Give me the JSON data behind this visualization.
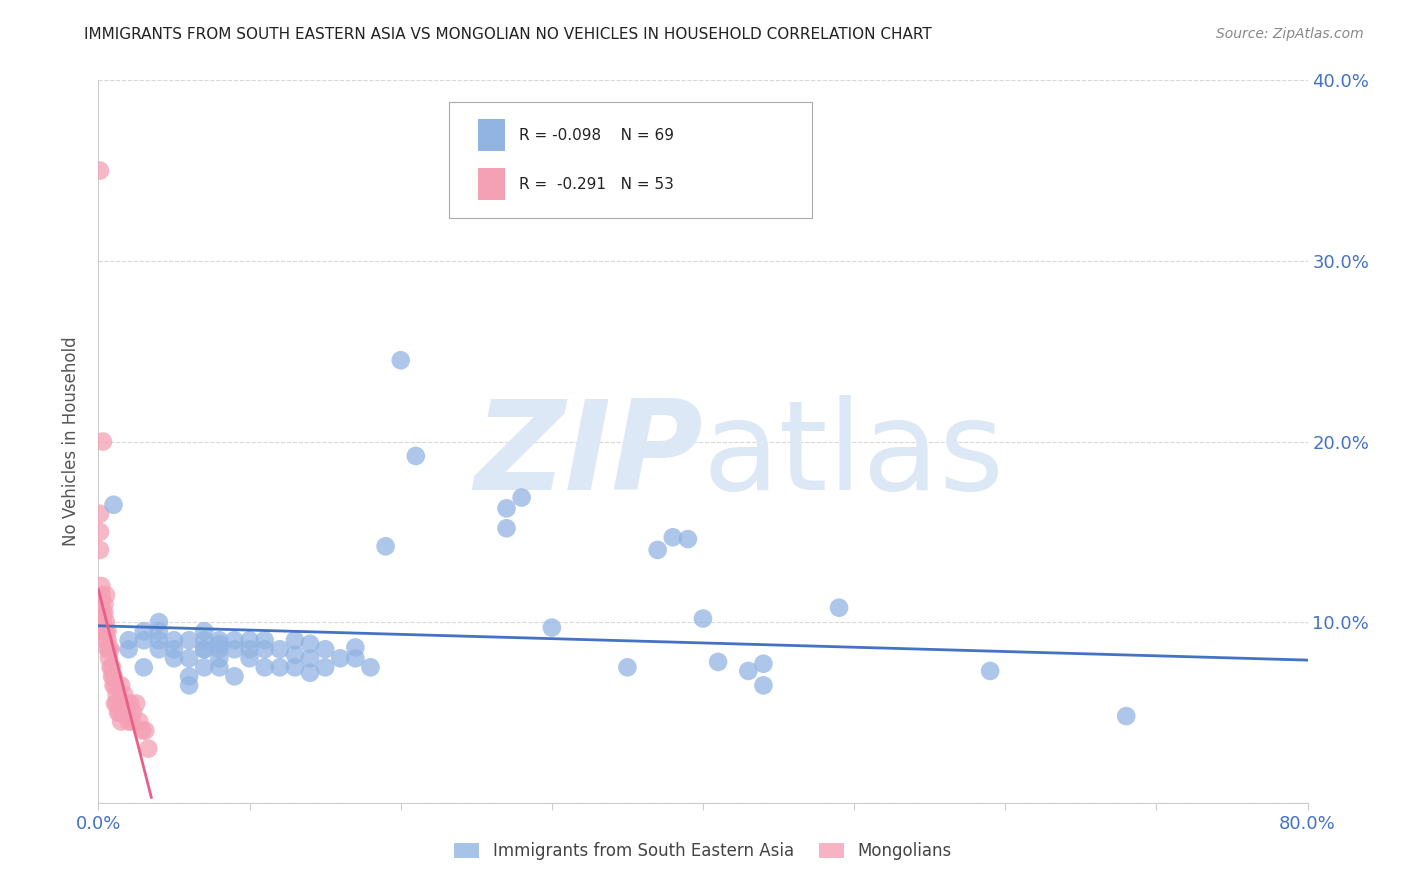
{
  "title": "IMMIGRANTS FROM SOUTH EASTERN ASIA VS MONGOLIAN NO VEHICLES IN HOUSEHOLD CORRELATION CHART",
  "source": "Source: ZipAtlas.com",
  "ylabel": "No Vehicles in Household",
  "xlim": [
    0.0,
    0.8
  ],
  "ylim": [
    0.0,
    0.4
  ],
  "blue_color": "#92b4e3",
  "pink_color": "#f4a0b5",
  "blue_line_color": "#4472c4",
  "pink_line_color": "#e8608a",
  "legend_R1": "R = -0.098",
  "legend_N1": "N = 69",
  "legend_R2": "R =  -0.291",
  "legend_N2": "N = 53",
  "legend_label1": "Immigrants from South Eastern Asia",
  "legend_label2": "Mongolians",
  "watermark": "ZIPatlas",
  "blue_scatter_x": [
    0.01,
    0.02,
    0.02,
    0.03,
    0.03,
    0.03,
    0.04,
    0.04,
    0.04,
    0.04,
    0.05,
    0.05,
    0.05,
    0.06,
    0.06,
    0.06,
    0.06,
    0.07,
    0.07,
    0.07,
    0.07,
    0.07,
    0.08,
    0.08,
    0.08,
    0.08,
    0.08,
    0.09,
    0.09,
    0.09,
    0.1,
    0.1,
    0.1,
    0.11,
    0.11,
    0.11,
    0.12,
    0.12,
    0.13,
    0.13,
    0.13,
    0.14,
    0.14,
    0.14,
    0.15,
    0.15,
    0.16,
    0.17,
    0.17,
    0.18,
    0.19,
    0.2,
    0.21,
    0.27,
    0.27,
    0.28,
    0.3,
    0.35,
    0.37,
    0.38,
    0.39,
    0.4,
    0.41,
    0.43,
    0.44,
    0.44,
    0.49,
    0.59,
    0.68
  ],
  "blue_scatter_y": [
    0.165,
    0.085,
    0.09,
    0.075,
    0.09,
    0.095,
    0.085,
    0.09,
    0.095,
    0.1,
    0.08,
    0.085,
    0.09,
    0.065,
    0.07,
    0.08,
    0.09,
    0.075,
    0.085,
    0.085,
    0.09,
    0.095,
    0.075,
    0.08,
    0.085,
    0.088,
    0.09,
    0.07,
    0.085,
    0.09,
    0.08,
    0.085,
    0.09,
    0.075,
    0.085,
    0.09,
    0.075,
    0.085,
    0.075,
    0.082,
    0.09,
    0.072,
    0.08,
    0.088,
    0.075,
    0.085,
    0.08,
    0.08,
    0.086,
    0.075,
    0.142,
    0.245,
    0.192,
    0.163,
    0.152,
    0.169,
    0.097,
    0.075,
    0.14,
    0.147,
    0.146,
    0.102,
    0.078,
    0.073,
    0.077,
    0.065,
    0.108,
    0.073,
    0.048
  ],
  "pink_scatter_x": [
    0.001,
    0.001,
    0.001,
    0.001,
    0.002,
    0.002,
    0.002,
    0.002,
    0.002,
    0.003,
    0.003,
    0.003,
    0.003,
    0.004,
    0.004,
    0.004,
    0.005,
    0.005,
    0.005,
    0.005,
    0.006,
    0.006,
    0.006,
    0.007,
    0.007,
    0.008,
    0.008,
    0.009,
    0.009,
    0.01,
    0.01,
    0.011,
    0.011,
    0.012,
    0.012,
    0.013,
    0.014,
    0.015,
    0.015,
    0.016,
    0.017,
    0.017,
    0.018,
    0.019,
    0.02,
    0.021,
    0.022,
    0.023,
    0.025,
    0.027,
    0.029,
    0.031,
    0.033
  ],
  "pink_scatter_y": [
    0.35,
    0.14,
    0.15,
    0.16,
    0.1,
    0.105,
    0.11,
    0.115,
    0.12,
    0.095,
    0.1,
    0.105,
    0.2,
    0.095,
    0.105,
    0.11,
    0.09,
    0.095,
    0.1,
    0.115,
    0.085,
    0.09,
    0.095,
    0.08,
    0.085,
    0.075,
    0.085,
    0.07,
    0.075,
    0.065,
    0.07,
    0.055,
    0.065,
    0.055,
    0.06,
    0.05,
    0.05,
    0.045,
    0.065,
    0.05,
    0.055,
    0.06,
    0.05,
    0.055,
    0.045,
    0.055,
    0.045,
    0.05,
    0.055,
    0.045,
    0.04,
    0.04,
    0.03
  ],
  "blue_line_x": [
    0.0,
    0.8
  ],
  "blue_line_y": [
    0.098,
    0.079
  ],
  "pink_line_x": [
    0.0,
    0.035
  ],
  "pink_line_y": [
    0.118,
    0.003
  ],
  "title_fontsize": 11,
  "tick_color": "#4472c4",
  "grid_color": "#d8d8d8",
  "watermark_color": "#dce8f5",
  "background_color": "#ffffff"
}
